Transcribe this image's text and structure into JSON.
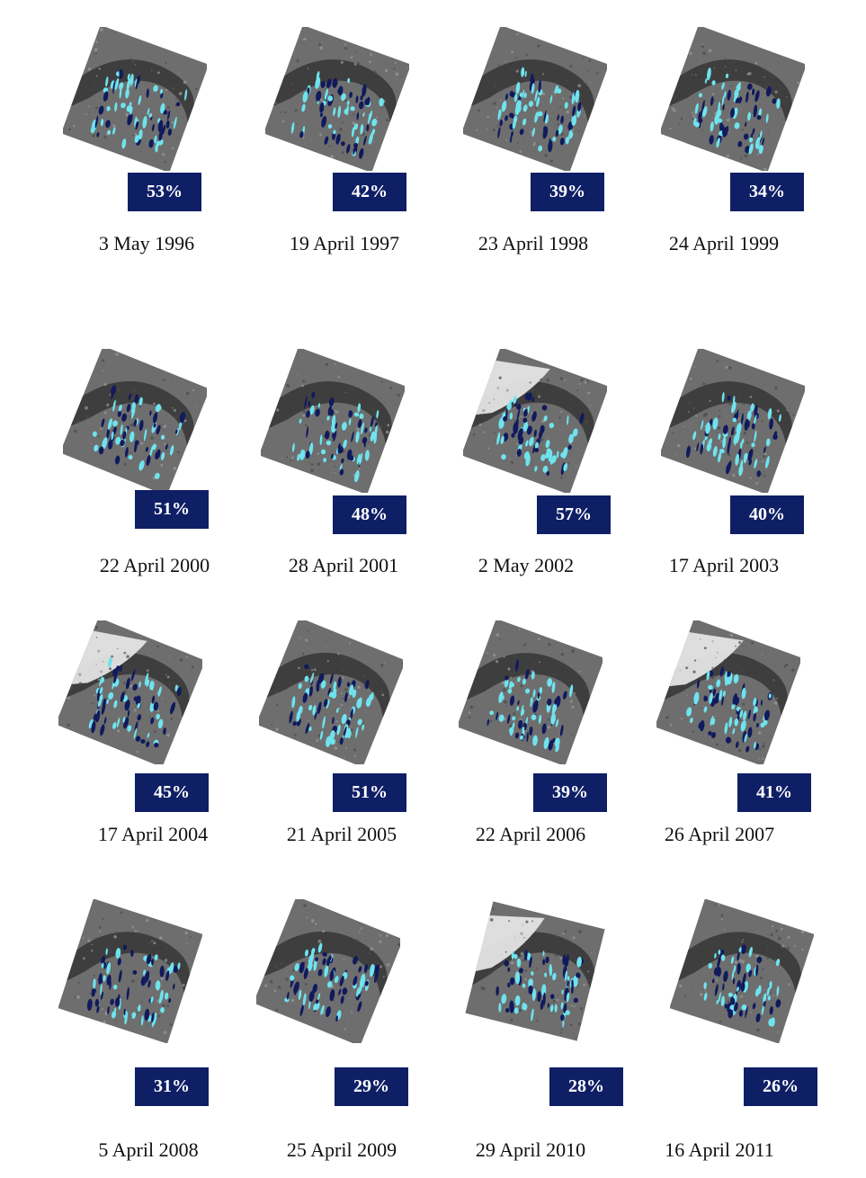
{
  "colors": {
    "badge": "#0f1f66",
    "lake_light": "#6fe3ee",
    "lake_dark": "#101a5c",
    "ice": "#e4e4e4",
    "land": "#6e6e6e",
    "shadow": "#2f2f2f"
  },
  "panels": [
    {
      "date": "3 May 1996",
      "coverage": "53%",
      "frozen_river": false
    },
    {
      "date": "19 April 1997",
      "coverage": "42%",
      "frozen_river": false
    },
    {
      "date": "23 April 1998",
      "coverage": "39%",
      "frozen_river": false
    },
    {
      "date": "24 April 1999",
      "coverage": "34%",
      "frozen_river": false
    },
    {
      "date": "22 April 2000",
      "coverage": "51%",
      "frozen_river": false
    },
    {
      "date": "28 April 2001",
      "coverage": "48%",
      "frozen_river": false
    },
    {
      "date": "2 May 2002",
      "coverage": "57%",
      "frozen_river": true
    },
    {
      "date": "17 April 2003",
      "coverage": "40%",
      "frozen_river": false
    },
    {
      "date": "17 April 2004",
      "coverage": "45%",
      "frozen_river": true
    },
    {
      "date": "21 April 2005",
      "coverage": "51%",
      "frozen_river": false
    },
    {
      "date": "22 April 2006",
      "coverage": "39%",
      "frozen_river": false
    },
    {
      "date": "26 April 2007",
      "coverage": "41%",
      "frozen_river": true
    },
    {
      "date": "5 April 2008",
      "coverage": "31%",
      "frozen_river": false
    },
    {
      "date": "25 April 2009",
      "coverage": "29%",
      "frozen_river": false
    },
    {
      "date": "29 April 2010",
      "coverage": "28%",
      "frozen_river": true
    },
    {
      "date": "16 April 2011",
      "coverage": "26%",
      "frozen_river": false
    }
  ]
}
